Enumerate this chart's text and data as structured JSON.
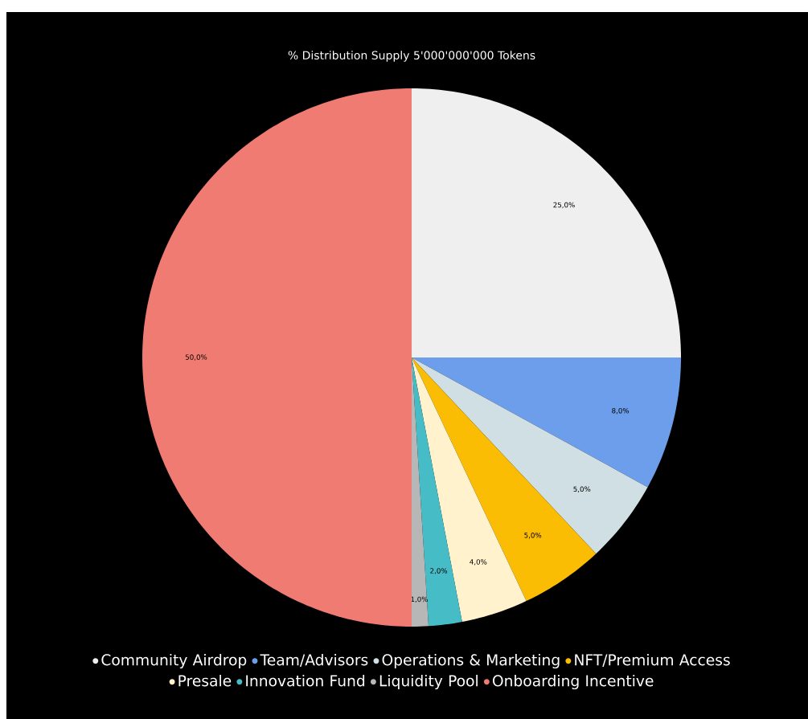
{
  "chart_data": {
    "type": "pie",
    "title": "% Distribution Supply 5'000'000'000 Tokens",
    "categories": [
      "Community Airdrop",
      "Team/Advisors",
      "Operations & Marketing",
      "NFT/Premium Access",
      "Presale",
      "Innovation Fund",
      "Liquidity Pool",
      "Onboarding Incentive"
    ],
    "values": [
      25,
      8,
      5,
      5,
      4,
      2,
      1,
      50
    ],
    "value_labels": [
      "25,0%",
      "8,0%",
      "5,0%",
      "5,0%",
      "4,0%",
      "2,0%",
      "1,0%",
      "50,0%"
    ],
    "colors": [
      "#efefef",
      "#6d9eeb",
      "#d0dfe3",
      "#fbbc04",
      "#fff2cc",
      "#46bdc6",
      "#b7b7b7",
      "#f07b72"
    ],
    "legend": "bottom"
  }
}
